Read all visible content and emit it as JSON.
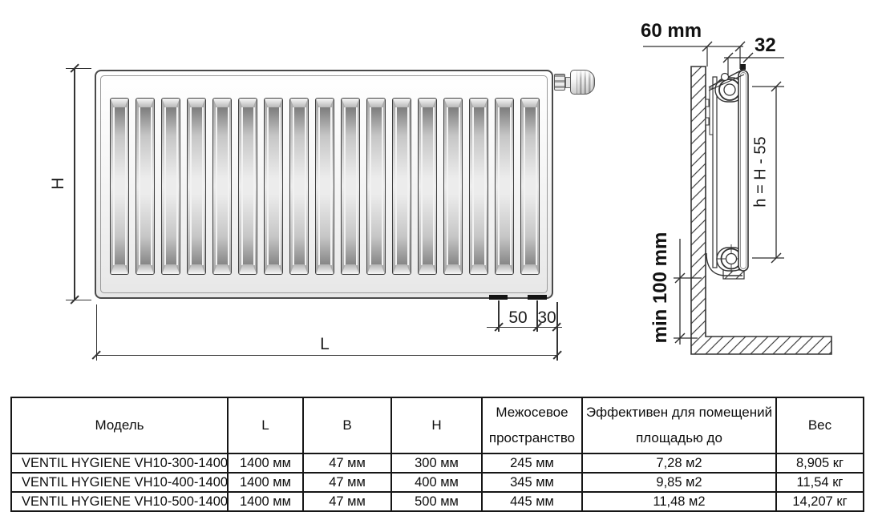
{
  "diagram": {
    "front_view": {
      "height_label": "H",
      "length_label": "L",
      "bottom_offset_50": "50",
      "bottom_offset_30": "30",
      "slat_count": 17
    },
    "side_view": {
      "wall_distance_label": "60 mm",
      "depth_label": "32",
      "connection_spacing_label": "h = H - 55",
      "floor_clearance_label": "min 100 mm"
    }
  },
  "table": {
    "headers": [
      "Модель",
      "L",
      "B",
      "H",
      "Межосевое\nпространство",
      "Эффективен для помещений\nплощадью до",
      "Вес"
    ],
    "rows": [
      [
        "VENTIL HYGIENE VH10-300-1400",
        "1400 мм",
        "47 мм",
        "300 мм",
        "245 мм",
        "7,28 м2",
        "8,905 кг"
      ],
      [
        "VENTIL HYGIENE VH10-400-1400",
        "1400 мм",
        "47 мм",
        "400 мм",
        "345 мм",
        "9,85 м2",
        "11,54 кг"
      ],
      [
        "VENTIL HYGIENE VH10-500-1400",
        "1400 мм",
        "47 мм",
        "500 мм",
        "445 мм",
        "11,48 м2",
        "14,207 кг"
      ]
    ]
  },
  "colors": {
    "line": "#333333",
    "table_border": "#161616"
  }
}
